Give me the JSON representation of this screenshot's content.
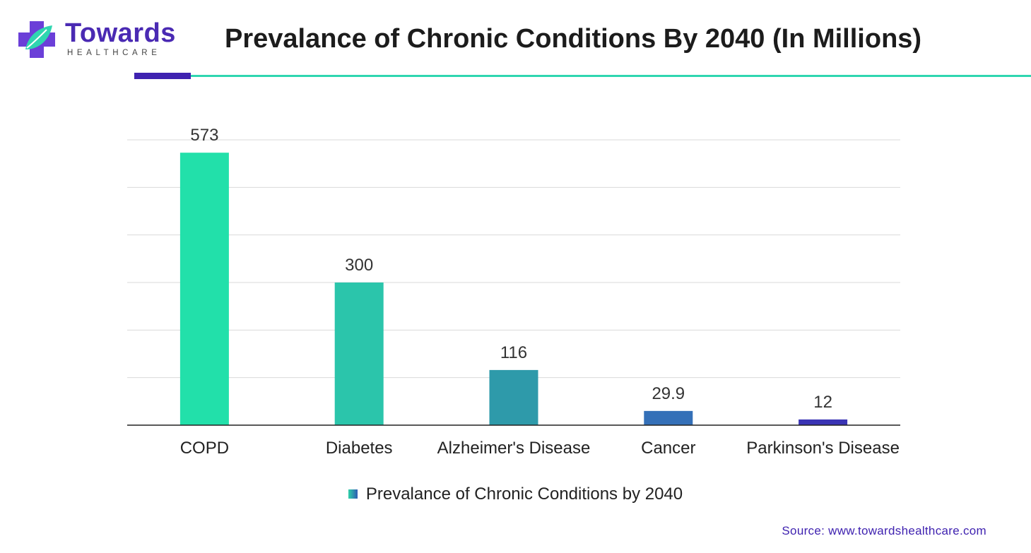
{
  "brand": {
    "name": "Towards",
    "tagline": "HEALTHCARE",
    "colors": {
      "primary": "#4a2ab3",
      "accent": "#2fd6b0"
    }
  },
  "page_title": "Prevalance of Chronic Conditions By 2040 (In Millions)",
  "source": "Source: www.towardshealthcare.com",
  "chart_data": {
    "type": "bar",
    "title": "Prevalance of Chronic Conditions By 2040 (In Millions)",
    "categories": [
      "COPD",
      "Diabetes",
      "Alzheimer's Disease",
      "Cancer",
      "Parkinson's Disease"
    ],
    "series": [
      {
        "name": "Prevalance of Chronic Conditions by 2040",
        "values": [
          573,
          300,
          116,
          29.9,
          12
        ]
      }
    ],
    "value_labels": [
      "573",
      "300",
      "116",
      "29.9",
      "12"
    ],
    "bar_colors": [
      "#22e0aa",
      "#2bc5ab",
      "#2e9aaa",
      "#3470b8",
      "#3a34b4"
    ],
    "ylim": [
      0,
      600
    ],
    "gridlines": true,
    "y_tick_labels_visible": false,
    "legend_position": "bottom"
  }
}
